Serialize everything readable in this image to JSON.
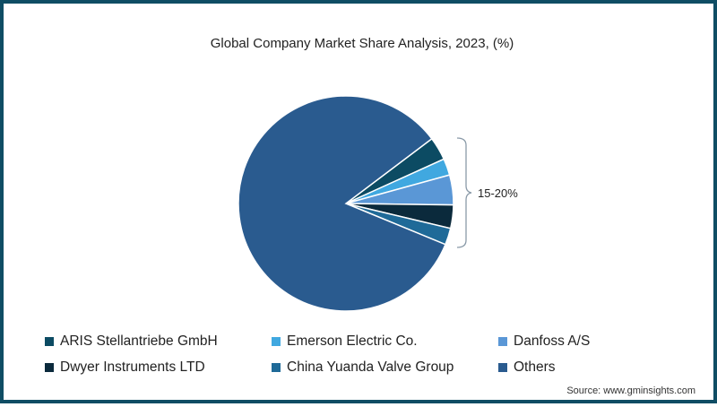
{
  "title": "Global Company Market Share Analysis, 2023, (%)",
  "annotation": "15-20%",
  "source": "Source: www.gminsights.com",
  "colors": {
    "border": "#0f4d64",
    "aris": "#0c4b63",
    "emerson": "#40a8e0",
    "danfoss": "#5a97d6",
    "dwyer": "#0b2a3c",
    "china_yuanda": "#1f6a98",
    "others": "#2a5b8f"
  },
  "legend": [
    {
      "label": "ARIS Stellantriebe GmbH",
      "color": "#0c4b63"
    },
    {
      "label": "Emerson Electric Co.",
      "color": "#40a8e0"
    },
    {
      "label": "Danfoss A/S",
      "color": "#5a97d6"
    },
    {
      "label": "Dwyer Instruments LTD",
      "color": "#0b2a3c"
    },
    {
      "label": "China Yuanda Valve Group",
      "color": "#1f6a98"
    },
    {
      "label": "Others",
      "color": "#2a5b8f"
    }
  ],
  "chart_data": {
    "type": "pie",
    "title": "Global Company Market Share Analysis, 2023, (%)",
    "categories": [
      "ARIS Stellantriebe GmbH",
      "Emerson Electric Co.",
      "Danfoss A/S",
      "Dwyer Instruments LTD",
      "China Yuanda Valve Group",
      "Others"
    ],
    "values": [
      3.5,
      2.5,
      4.5,
      3.5,
      2.5,
      83.5
    ],
    "annotations": [
      {
        "text": "15-20%",
        "applies_to": [
          "ARIS Stellantriebe GmbH",
          "Emerson Electric Co.",
          "Danfoss A/S",
          "Dwyer Instruments LTD",
          "China Yuanda Valve Group"
        ]
      }
    ],
    "legend_position": "bottom",
    "source": "Source: www.gminsights.com"
  }
}
